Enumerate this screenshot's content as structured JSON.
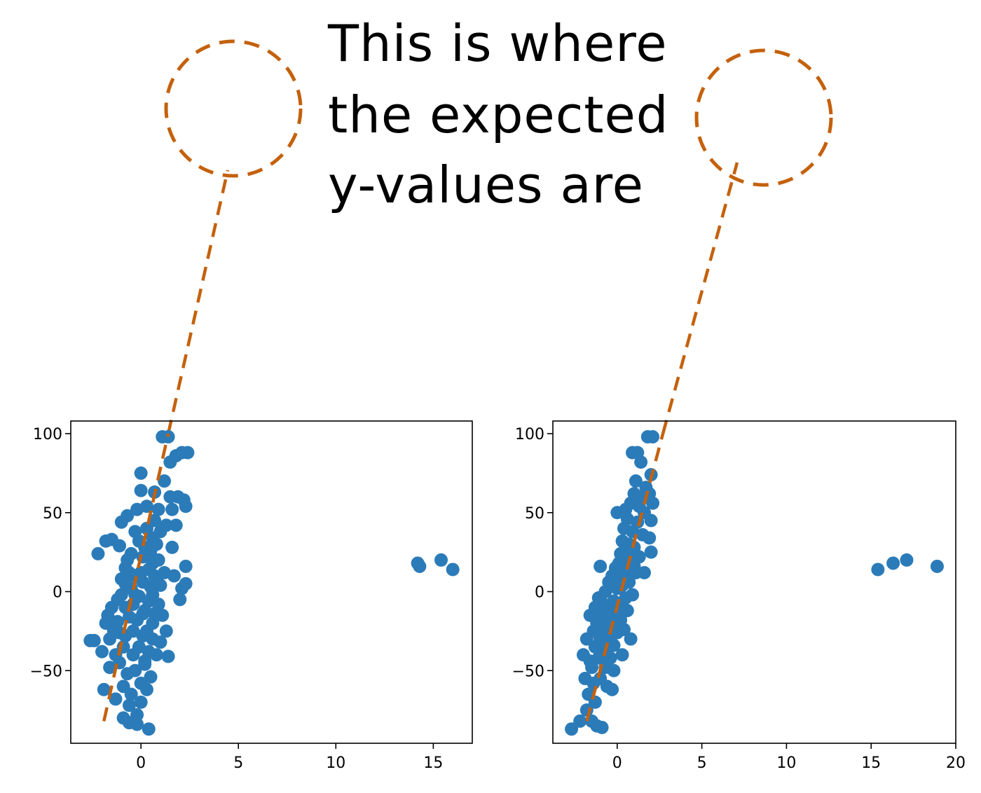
{
  "annotation": {
    "lines": [
      "This is where",
      "the expected",
      "y-values are"
    ],
    "color": "#c4610c"
  },
  "style": {
    "point_color": "#2b7bb9",
    "line_color": "#c4610c",
    "axes_color": "#000000"
  },
  "chart_data": [
    {
      "type": "scatter",
      "xlim": [
        -3.6,
        17
      ],
      "ylim": [
        -96,
        108
      ],
      "xticks": [
        0,
        5,
        10,
        15
      ],
      "xtick_labels": [
        "0",
        "5",
        "10",
        "15"
      ],
      "yticks": [
        -50,
        0,
        50,
        100
      ],
      "ytick_labels": [
        "−50",
        "0",
        "50",
        "100"
      ],
      "grid": false,
      "fit_line": {
        "x": [
          -1.9,
          1.4
        ],
        "y": [
          -82,
          100
        ]
      },
      "points": [
        [
          -2.6,
          -31
        ],
        [
          -2.4,
          -31
        ],
        [
          -2.2,
          24
        ],
        [
          -2.0,
          -38
        ],
        [
          -1.9,
          -62
        ],
        [
          -1.8,
          -20
        ],
        [
          -1.8,
          32
        ],
        [
          -1.7,
          -15
        ],
        [
          -1.6,
          -30
        ],
        [
          -1.6,
          -48
        ],
        [
          -1.5,
          -10
        ],
        [
          -1.5,
          33
        ],
        [
          -1.4,
          -25
        ],
        [
          -1.3,
          -40
        ],
        [
          -1.3,
          -68
        ],
        [
          -1.2,
          -19
        ],
        [
          -1.2,
          -5
        ],
        [
          -1.1,
          -45
        ],
        [
          -1.1,
          29
        ],
        [
          -1.0,
          8
        ],
        [
          -1.0,
          44
        ],
        [
          -1.0,
          -2
        ],
        [
          -0.9,
          -35
        ],
        [
          -0.9,
          -80
        ],
        [
          -0.9,
          -60
        ],
        [
          -0.8,
          5
        ],
        [
          -0.8,
          15
        ],
        [
          -0.8,
          -28
        ],
        [
          -0.7,
          -52
        ],
        [
          -0.7,
          48
        ],
        [
          -0.7,
          20
        ],
        [
          -0.6,
          -16
        ],
        [
          -0.6,
          -72
        ],
        [
          -0.6,
          -83
        ],
        [
          -0.5,
          -65
        ],
        [
          -0.5,
          2
        ],
        [
          -0.5,
          24
        ],
        [
          -0.4,
          -40
        ],
        [
          -0.4,
          -8
        ],
        [
          -0.4,
          -25
        ],
        [
          -0.3,
          10
        ],
        [
          -0.3,
          38
        ],
        [
          -0.3,
          -50
        ],
        [
          -0.2,
          52
        ],
        [
          -0.2,
          -84
        ],
        [
          -0.2,
          -18
        ],
        [
          -0.1,
          -35
        ],
        [
          -0.1,
          32
        ],
        [
          -0.1,
          -3
        ],
        [
          0.0,
          12
        ],
        [
          0.0,
          64
        ],
        [
          0.0,
          -58
        ],
        [
          0.0,
          -70
        ],
        [
          0.1,
          22
        ],
        [
          0.1,
          -28
        ],
        [
          0.1,
          6
        ],
        [
          0.2,
          -12
        ],
        [
          0.2,
          28
        ],
        [
          0.2,
          -44
        ],
        [
          0.3,
          -62
        ],
        [
          0.3,
          -25
        ],
        [
          0.3,
          40
        ],
        [
          0.3,
          54
        ],
        [
          0.4,
          -6
        ],
        [
          0.4,
          14
        ],
        [
          0.4,
          -38
        ],
        [
          0.4,
          -87
        ],
        [
          0.5,
          -54
        ],
        [
          0.5,
          26
        ],
        [
          0.5,
          3
        ],
        [
          0.6,
          -20
        ],
        [
          0.6,
          18
        ],
        [
          0.6,
          34
        ],
        [
          0.6,
          -30
        ],
        [
          0.7,
          45
        ],
        [
          0.7,
          -14
        ],
        [
          0.7,
          10
        ],
        [
          0.7,
          63
        ],
        [
          0.8,
          -40
        ],
        [
          0.8,
          30
        ],
        [
          0.9,
          -8
        ],
        [
          0.9,
          20
        ],
        [
          0.9,
          52
        ],
        [
          1.0,
          -32
        ],
        [
          1.0,
          38
        ],
        [
          1.0,
          4
        ],
        [
          1.1,
          98
        ],
        [
          1.1,
          -15
        ],
        [
          1.2,
          70
        ],
        [
          1.2,
          12
        ],
        [
          1.3,
          42
        ],
        [
          1.3,
          -25
        ],
        [
          1.4,
          -41
        ],
        [
          1.4,
          98
        ],
        [
          1.5,
          60
        ],
        [
          1.5,
          82
        ],
        [
          1.6,
          28
        ],
        [
          1.6,
          52
        ],
        [
          1.7,
          10
        ],
        [
          1.8,
          42
        ],
        [
          1.8,
          86
        ],
        [
          1.9,
          60
        ],
        [
          2.0,
          -5
        ],
        [
          2.1,
          2
        ],
        [
          2.1,
          88
        ],
        [
          2.2,
          58
        ],
        [
          2.3,
          16
        ],
        [
          2.3,
          54
        ],
        [
          2.3,
          5
        ],
        [
          2.4,
          88
        ],
        [
          0.0,
          75
        ],
        [
          -0.2,
          -78
        ],
        [
          0.1,
          -14
        ],
        [
          -0.6,
          12
        ],
        [
          0.6,
          -2
        ],
        [
          -1.1,
          -26
        ],
        [
          0.2,
          -46
        ],
        [
          -0.3,
          -2
        ],
        [
          0.8,
          8
        ],
        [
          -0.8,
          -10
        ],
        [
          14.2,
          18
        ],
        [
          14.3,
          16
        ],
        [
          15.4,
          20
        ],
        [
          16.0,
          14
        ]
      ]
    },
    {
      "type": "scatter",
      "xlim": [
        -3.8,
        20
      ],
      "ylim": [
        -96,
        108
      ],
      "xticks": [
        0,
        5,
        10,
        15,
        20
      ],
      "xtick_labels": [
        "0",
        "5",
        "10",
        "15",
        "20"
      ],
      "yticks": [
        -50,
        0,
        50,
        100
      ],
      "ytick_labels": [
        "−50",
        "0",
        "50",
        "100"
      ],
      "grid": false,
      "fit_line": {
        "x": [
          -1.8,
          2.7
        ],
        "y": [
          -82,
          100
        ]
      },
      "points": [
        [
          -2.7,
          -87
        ],
        [
          -2.2,
          -82
        ],
        [
          -2.0,
          -40
        ],
        [
          -1.9,
          -55
        ],
        [
          -1.8,
          -75
        ],
        [
          -1.8,
          -30
        ],
        [
          -1.7,
          -65
        ],
        [
          -1.6,
          -44
        ],
        [
          -1.6,
          -15
        ],
        [
          -1.5,
          -82
        ],
        [
          -1.5,
          -48
        ],
        [
          -1.4,
          -25
        ],
        [
          -1.4,
          -58
        ],
        [
          -1.3,
          -10
        ],
        [
          -1.3,
          -35
        ],
        [
          -1.2,
          -85
        ],
        [
          -1.2,
          -20
        ],
        [
          -1.1,
          -42
        ],
        [
          -1.1,
          -4
        ],
        [
          -1.0,
          -30
        ],
        [
          -1.0,
          -55
        ],
        [
          -1.0,
          16
        ],
        [
          -0.9,
          -14
        ],
        [
          -0.9,
          -38
        ],
        [
          -0.9,
          -86
        ],
        [
          -0.8,
          -8
        ],
        [
          -0.8,
          -26
        ],
        [
          -0.7,
          -48
        ],
        [
          -0.7,
          0
        ],
        [
          -0.6,
          -18
        ],
        [
          -0.6,
          -36
        ],
        [
          -0.5,
          6
        ],
        [
          -0.5,
          -28
        ],
        [
          -0.4,
          -42
        ],
        [
          -0.4,
          -10
        ],
        [
          -0.3,
          10
        ],
        [
          -0.3,
          -20
        ],
        [
          -0.3,
          -62
        ],
        [
          -0.2,
          -6
        ],
        [
          -0.2,
          -34
        ],
        [
          -0.1,
          15
        ],
        [
          -0.1,
          -14
        ],
        [
          0.0,
          2
        ],
        [
          0.0,
          -26
        ],
        [
          0.0,
          50
        ],
        [
          0.1,
          18
        ],
        [
          0.1,
          -8
        ],
        [
          0.2,
          24
        ],
        [
          0.2,
          -18
        ],
        [
          0.3,
          4
        ],
        [
          0.3,
          32
        ],
        [
          0.3,
          -40
        ],
        [
          0.4,
          12
        ],
        [
          0.4,
          40
        ],
        [
          0.5,
          -4
        ],
        [
          0.5,
          22
        ],
        [
          0.5,
          52
        ],
        [
          0.6,
          14
        ],
        [
          0.6,
          -12
        ],
        [
          0.6,
          46
        ],
        [
          0.7,
          30
        ],
        [
          0.7,
          6
        ],
        [
          0.8,
          56
        ],
        [
          0.8,
          20
        ],
        [
          0.9,
          38
        ],
        [
          0.9,
          -2
        ],
        [
          0.9,
          88
        ],
        [
          1.0,
          62
        ],
        [
          1.0,
          28
        ],
        [
          1.1,
          12
        ],
        [
          1.1,
          70
        ],
        [
          1.2,
          44
        ],
        [
          1.2,
          88
        ],
        [
          1.3,
          22
        ],
        [
          1.4,
          82
        ],
        [
          1.4,
          60
        ],
        [
          1.5,
          36
        ],
        [
          1.6,
          50
        ],
        [
          1.7,
          66
        ],
        [
          1.8,
          98
        ],
        [
          1.9,
          34
        ],
        [
          2.0,
          74
        ],
        [
          2.1,
          98
        ],
        [
          2.0,
          45
        ],
        [
          1.9,
          62
        ],
        [
          2.0,
          25
        ],
        [
          1.6,
          12
        ],
        [
          2.1,
          56
        ],
        [
          1.3,
          54
        ],
        [
          0.8,
          -30
        ],
        [
          -0.6,
          -60
        ],
        [
          -1.3,
          -70
        ],
        [
          0.4,
          -24
        ],
        [
          -0.2,
          -50
        ],
        [
          1.0,
          16
        ],
        [
          0.2,
          8
        ],
        [
          -0.8,
          -20
        ],
        [
          0.6,
          30
        ],
        [
          15.4,
          14
        ],
        [
          16.3,
          18
        ],
        [
          17.1,
          20
        ],
        [
          18.9,
          16
        ]
      ]
    }
  ]
}
